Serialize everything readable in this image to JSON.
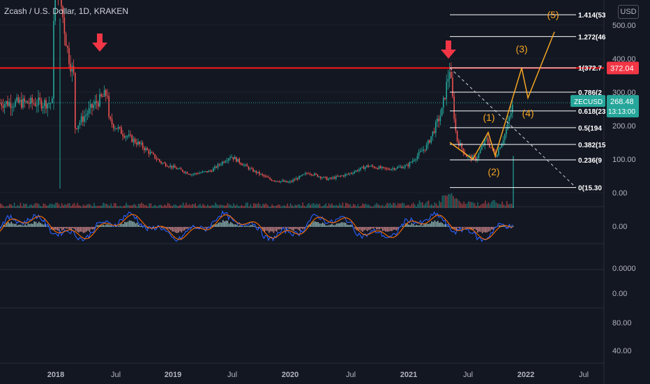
{
  "header": {
    "title": "Zcash / U.S. Dollar, 1D, KRAKEN",
    "currency_button": "USD"
  },
  "price_axis": {
    "ticks": [
      "500.00",
      "400.00",
      "300.00",
      "200.00",
      "100.00",
      "0.00"
    ],
    "price_badge": {
      "value": "372.04",
      "color": "#f23645"
    },
    "symbol_badge": {
      "symbol": "ZECUSD",
      "price": "268.48",
      "countdown": "13:13:00",
      "color": "#26a69a"
    }
  },
  "sub_panes": [
    {
      "ticks": [
        "0.00"
      ]
    },
    {
      "ticks": [
        "0.0000"
      ]
    },
    {
      "ticks": [
        "0.00"
      ]
    },
    {
      "ticks": [
        "80.00",
        "40.00"
      ]
    }
  ],
  "time_axis": {
    "labels": [
      "2018",
      "Jul",
      "2019",
      "Jul",
      "2020",
      "Jul",
      "2021",
      "Jul",
      "2022",
      "Jul"
    ]
  },
  "fibonacci": {
    "levels": [
      {
        "label": "1.414(53"
      },
      {
        "label": "1.272(46"
      },
      {
        "label": "1(372.7"
      },
      {
        "label": "0.786(2"
      },
      {
        "label": "0.618(23"
      },
      {
        "label": "0.5(194"
      },
      {
        "label": "0.382(15"
      },
      {
        "label": "0.236(9"
      },
      {
        "label": "0(15.30"
      }
    ]
  },
  "elliott_waves": {
    "labels": [
      "(1)",
      "(2)",
      "(3)",
      "(4)",
      "(5)"
    ],
    "color": "#f5a623"
  },
  "colors": {
    "background": "#131722",
    "up": "#26a69a",
    "down": "#ef5350",
    "resistance": "#ff1a1a",
    "fib_line": "#ffffff",
    "wave": "#f5a623"
  },
  "chart_data": {
    "type": "line",
    "title": "Zcash / U.S. Dollar, 1D, KRAKEN",
    "x": [
      "2018-01",
      "2018-05",
      "2019-01",
      "2019-07",
      "2020-01",
      "2020-07",
      "2021-01",
      "2021-05",
      "2021-07",
      "2021-11"
    ],
    "series": [
      {
        "values": [
          520,
          380,
          62,
          95,
          35,
          60,
          90,
          372,
          110,
          268
        ]
      }
    ],
    "ylim": [
      -40,
      560
    ],
    "annotations": [
      "372.04 resistance",
      "Fibonacci retracement 0(15.30) to 1(372.7)",
      "Elliott waves (1)-(5)"
    ]
  }
}
